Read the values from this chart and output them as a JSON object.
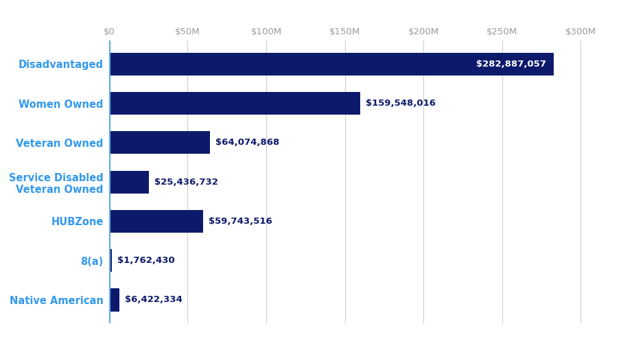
{
  "categories": [
    "Disadvantaged",
    "Women Owned",
    "Veteran Owned",
    "Service Disabled\nVeteran Owned",
    "HUBZone",
    "8(a)",
    "Native American"
  ],
  "values": [
    282887057,
    159548016,
    64074868,
    25436732,
    59743516,
    1762430,
    6422334
  ],
  "labels": [
    "$282,887,057",
    "$159,548,016",
    "$64,074,868",
    "$25,436,732",
    "$59,743,516",
    "$1,762,430",
    "$6,422,334"
  ],
  "label_inside": [
    true,
    false,
    false,
    false,
    false,
    false,
    false
  ],
  "bar_color": "#0d1a6b",
  "label_color_inside": "#ffffff",
  "label_color_outside": "#0d1a6b",
  "axis_line_color": "#5aace8",
  "ytick_color": "#3399ee",
  "xtick_color": "#999999",
  "grid_color": "#cccccc",
  "background_color": "#ffffff",
  "xlim": [
    0,
    315000000
  ],
  "xticks": [
    0,
    50000000,
    100000000,
    150000000,
    200000000,
    250000000,
    300000000
  ],
  "xtick_labels": [
    "$0",
    "$50M",
    "$100M",
    "$150M",
    "$200M",
    "$250M",
    "$300M"
  ],
  "bar_height": 0.58,
  "label_fontsize": 9.5,
  "xtick_fontsize": 9.5,
  "category_fontsize": 10.5
}
